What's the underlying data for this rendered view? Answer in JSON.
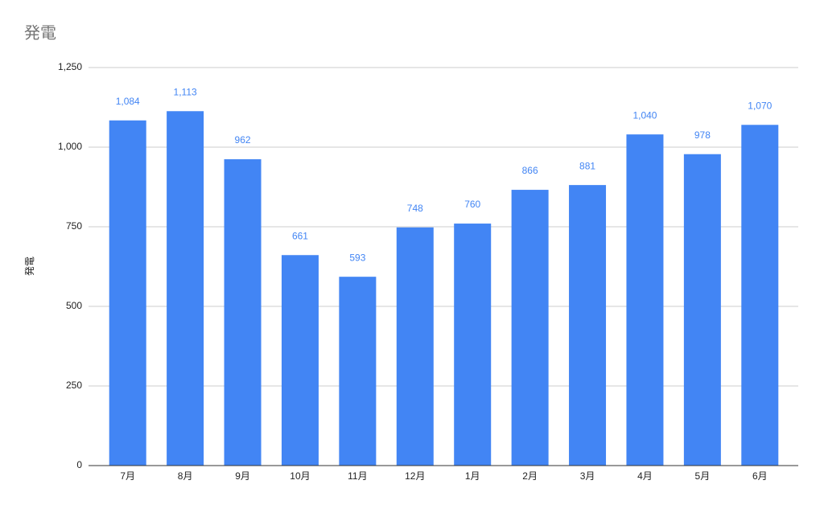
{
  "chart_data": {
    "type": "bar",
    "title": "発電",
    "y_label": "発電",
    "categories": [
      "7月",
      "8月",
      "9月",
      "10月",
      "11月",
      "12月",
      "1月",
      "2月",
      "3月",
      "4月",
      "5月",
      "6月"
    ],
    "values": [
      1084,
      1113,
      962,
      661,
      593,
      748,
      760,
      866,
      881,
      1040,
      978,
      1070
    ],
    "value_labels": [
      "1,084",
      "1,113",
      "962",
      "661",
      "593",
      "748",
      "760",
      "866",
      "881",
      "1,040",
      "978",
      "1,070"
    ],
    "color": "#4285f4",
    "ylim": [
      0,
      1250
    ],
    "yticks": [
      0,
      250,
      500,
      750,
      {
        "value": 1000,
        "label": "1,000"
      },
      {
        "value": 1250,
        "label": "1,250"
      }
    ],
    "grid": true
  }
}
